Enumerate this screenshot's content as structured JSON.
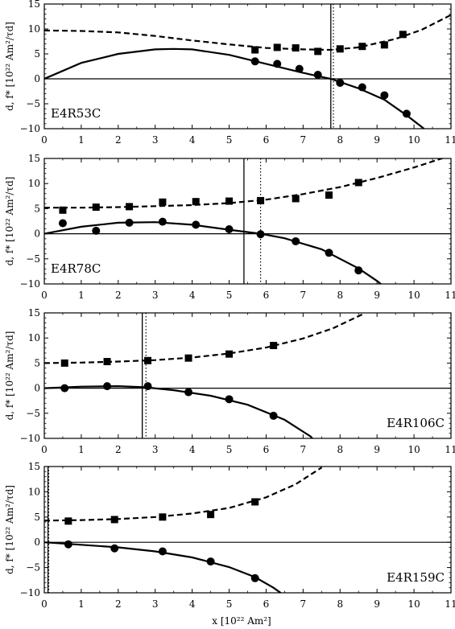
{
  "figure": {
    "ylabel": "d, f* [10²² Am²/τd]",
    "xlabel": "x [10²² Am²]"
  },
  "chart_data": [
    {
      "type": "scatter",
      "panel_label": "E4R53C",
      "xlim": [
        0,
        11
      ],
      "ylim": [
        -10,
        15
      ],
      "xticks": [
        0,
        1,
        2,
        3,
        4,
        5,
        6,
        7,
        8,
        9,
        10,
        11
      ],
      "yticks": [
        -10,
        -5,
        0,
        5,
        10,
        15
      ],
      "panel_label_position": "bottom-left",
      "grid": false,
      "vlines": {
        "solid": 7.75,
        "dotted": 7.82
      },
      "series": [
        {
          "marker": "square",
          "line": "dashed",
          "points": [
            [
              5.7,
              5.8
            ],
            [
              6.3,
              6.3
            ],
            [
              6.8,
              6.2
            ],
            [
              7.4,
              5.5
            ],
            [
              8.0,
              6.0
            ],
            [
              8.6,
              6.5
            ],
            [
              9.2,
              6.8
            ],
            [
              9.7,
              8.9
            ]
          ],
          "curve": [
            [
              0,
              9.7
            ],
            [
              1,
              9.6
            ],
            [
              2,
              9.3
            ],
            [
              3,
              8.6
            ],
            [
              4,
              7.7
            ],
            [
              5,
              6.9
            ],
            [
              6,
              6.2
            ],
            [
              7,
              5.9
            ],
            [
              7.75,
              5.8
            ],
            [
              8.5,
              6.3
            ],
            [
              9.5,
              8.0
            ],
            [
              10.2,
              9.8
            ],
            [
              11,
              12.8
            ]
          ]
        },
        {
          "marker": "circle",
          "line": "solid",
          "points": [
            [
              5.7,
              3.5
            ],
            [
              6.3,
              3.0
            ],
            [
              6.9,
              2.0
            ],
            [
              7.4,
              0.8
            ],
            [
              8.0,
              -0.8
            ],
            [
              8.6,
              -1.7
            ],
            [
              9.2,
              -3.3
            ],
            [
              9.8,
              -7.0
            ]
          ],
          "curve": [
            [
              0,
              0
            ],
            [
              1,
              3.2
            ],
            [
              2,
              5.0
            ],
            [
              3,
              5.9
            ],
            [
              3.5,
              6.0
            ],
            [
              4,
              5.9
            ],
            [
              5,
              4.8
            ],
            [
              6,
              3.0
            ],
            [
              7,
              1.2
            ],
            [
              7.75,
              0
            ],
            [
              8.5,
              -1.9
            ],
            [
              9.2,
              -4.2
            ],
            [
              9.8,
              -7.3
            ],
            [
              10.2,
              -9.6
            ],
            [
              10.4,
              -10.8
            ]
          ]
        }
      ]
    },
    {
      "type": "scatter",
      "panel_label": "E4R78C",
      "xlim": [
        0,
        11
      ],
      "ylim": [
        -10,
        15
      ],
      "xticks": [
        0,
        1,
        2,
        3,
        4,
        5,
        6,
        7,
        8,
        9,
        10,
        11
      ],
      "yticks": [
        -10,
        -5,
        0,
        5,
        10,
        15
      ],
      "panel_label_position": "bottom-left",
      "grid": false,
      "vlines": {
        "solid": 5.4,
        "dotted": 5.85
      },
      "series": [
        {
          "marker": "square",
          "line": "dashed",
          "points": [
            [
              0.5,
              4.7
            ],
            [
              1.4,
              5.3
            ],
            [
              2.3,
              5.4
            ],
            [
              3.2,
              6.3
            ],
            [
              4.1,
              6.4
            ],
            [
              5.0,
              6.5
            ],
            [
              5.85,
              6.6
            ],
            [
              6.8,
              7.0
            ],
            [
              7.7,
              7.7
            ],
            [
              8.5,
              10.2
            ]
          ],
          "curve": [
            [
              0,
              5.2
            ],
            [
              1,
              5.2
            ],
            [
              2,
              5.3
            ],
            [
              3,
              5.5
            ],
            [
              4,
              5.7
            ],
            [
              5,
              6.1
            ],
            [
              6,
              6.8
            ],
            [
              7,
              7.9
            ],
            [
              8,
              9.3
            ],
            [
              9,
              11.1
            ],
            [
              10,
              13.2
            ],
            [
              11,
              15.6
            ]
          ]
        },
        {
          "marker": "circle",
          "line": "solid",
          "points": [
            [
              0.5,
              2.1
            ],
            [
              1.4,
              0.6
            ],
            [
              2.3,
              2.2
            ],
            [
              3.2,
              2.4
            ],
            [
              4.1,
              1.8
            ],
            [
              5.0,
              0.9
            ],
            [
              5.85,
              -0.1
            ],
            [
              6.8,
              -1.5
            ],
            [
              7.7,
              -3.8
            ],
            [
              8.5,
              -7.3
            ]
          ],
          "curve": [
            [
              0,
              0
            ],
            [
              1,
              1.4
            ],
            [
              2,
              2.2
            ],
            [
              3,
              2.3
            ],
            [
              4,
              1.8
            ],
            [
              5,
              0.8
            ],
            [
              5.85,
              0
            ],
            [
              6.5,
              -0.9
            ],
            [
              7.5,
              -3.1
            ],
            [
              8.5,
              -6.9
            ],
            [
              9.0,
              -9.4
            ],
            [
              9.2,
              -10.6
            ]
          ]
        }
      ]
    },
    {
      "type": "scatter",
      "panel_label": "E4R106C",
      "xlim": [
        0,
        11
      ],
      "ylim": [
        -10,
        15
      ],
      "xticks": [
        0,
        1,
        2,
        3,
        4,
        5,
        6,
        7,
        8,
        9,
        10,
        11
      ],
      "yticks": [
        -10,
        -5,
        0,
        5,
        10,
        15
      ],
      "panel_label_position": "bottom-right",
      "grid": false,
      "vlines": {
        "solid": 2.65,
        "dotted": 2.75
      },
      "series": [
        {
          "marker": "square",
          "line": "dashed",
          "points": [
            [
              0.55,
              5.0
            ],
            [
              1.7,
              5.3
            ],
            [
              2.8,
              5.5
            ],
            [
              3.9,
              6.0
            ],
            [
              5.0,
              6.8
            ],
            [
              6.2,
              8.5
            ]
          ],
          "curve": [
            [
              0,
              5.0
            ],
            [
              1,
              5.1
            ],
            [
              2,
              5.3
            ],
            [
              3,
              5.6
            ],
            [
              4,
              6.1
            ],
            [
              5,
              6.9
            ],
            [
              6,
              8.1
            ],
            [
              7,
              9.9
            ],
            [
              7.8,
              11.9
            ],
            [
              8.6,
              14.7
            ]
          ]
        },
        {
          "marker": "circle",
          "line": "solid",
          "points": [
            [
              0.55,
              0.0
            ],
            [
              1.7,
              0.4
            ],
            [
              2.8,
              0.4
            ],
            [
              3.9,
              -0.8
            ],
            [
              5.0,
              -2.2
            ],
            [
              6.2,
              -5.5
            ]
          ],
          "curve": [
            [
              0,
              0
            ],
            [
              1,
              0.3
            ],
            [
              2,
              0.4
            ],
            [
              2.7,
              0.2
            ],
            [
              3.5,
              -0.4
            ],
            [
              4.5,
              -1.5
            ],
            [
              5.5,
              -3.3
            ],
            [
              6.5,
              -6.3
            ],
            [
              7.2,
              -9.6
            ],
            [
              7.3,
              -10.4
            ]
          ]
        }
      ]
    },
    {
      "type": "scatter",
      "panel_label": "E4R159C",
      "xlim": [
        0,
        11
      ],
      "ylim": [
        -10,
        15
      ],
      "xticks": [
        0,
        1,
        2,
        3,
        4,
        5,
        6,
        7,
        8,
        9,
        10,
        11
      ],
      "yticks": [
        -10,
        -5,
        0,
        5,
        10,
        15
      ],
      "panel_label_position": "bottom-right",
      "grid": false,
      "vlines": {
        "solid": 0.1,
        "dotted": 0.12
      },
      "series": [
        {
          "marker": "square",
          "line": "dashed",
          "points": [
            [
              0.65,
              4.2
            ],
            [
              1.9,
              4.5
            ],
            [
              3.2,
              5.0
            ],
            [
              4.5,
              5.5
            ],
            [
              5.7,
              8.0
            ]
          ],
          "curve": [
            [
              0,
              4.3
            ],
            [
              1,
              4.4
            ],
            [
              2,
              4.6
            ],
            [
              3,
              5.0
            ],
            [
              4,
              5.7
            ],
            [
              5,
              6.8
            ],
            [
              6,
              8.9
            ],
            [
              6.8,
              11.5
            ],
            [
              7.5,
              14.8
            ]
          ]
        },
        {
          "marker": "circle",
          "line": "solid",
          "points": [
            [
              0.65,
              -0.4
            ],
            [
              1.9,
              -1.2
            ],
            [
              3.2,
              -1.8
            ],
            [
              4.5,
              -3.8
            ],
            [
              5.7,
              -7.1
            ]
          ],
          "curve": [
            [
              0,
              0
            ],
            [
              1,
              -0.5
            ],
            [
              2,
              -1.0
            ],
            [
              3,
              -1.8
            ],
            [
              4,
              -3.0
            ],
            [
              5,
              -4.9
            ],
            [
              5.7,
              -6.9
            ],
            [
              6.2,
              -9.0
            ],
            [
              6.45,
              -10.3
            ]
          ]
        }
      ]
    }
  ]
}
